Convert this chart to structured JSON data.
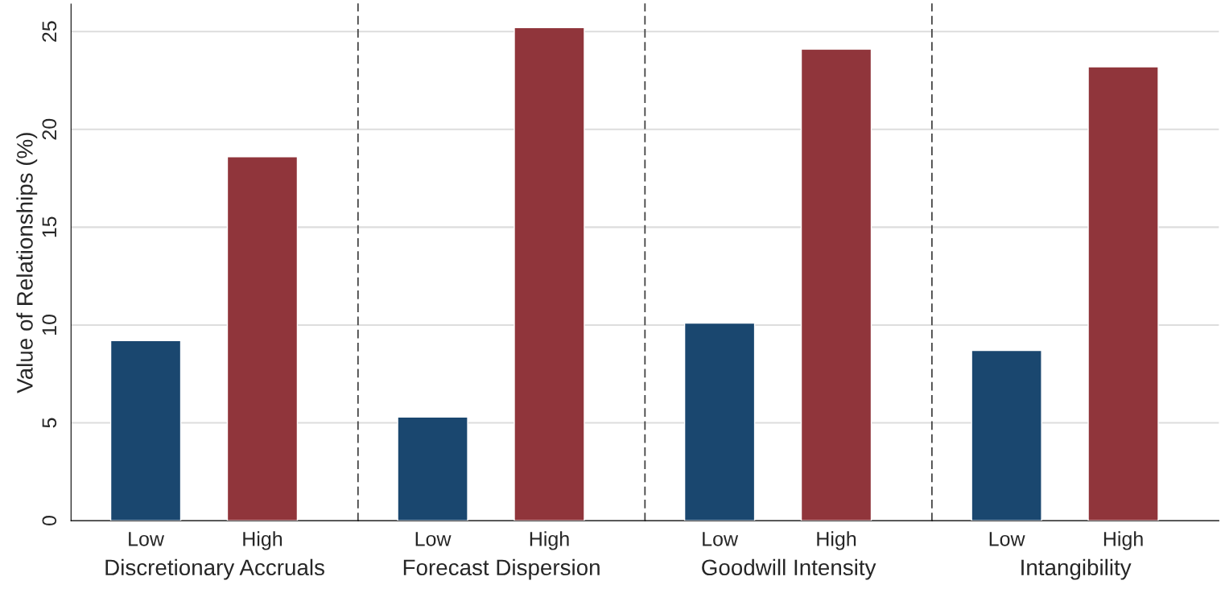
{
  "chart_data": [
    {
      "type": "bar",
      "categories": [
        "Low",
        "High"
      ],
      "values": [
        9.2,
        18.6
      ],
      "colors": [
        "#1a476f",
        "#90353b"
      ],
      "xlabel": "Discretionary Accruals",
      "ylabel": "Value of Relationships (%)",
      "ylim": [
        0,
        26.4
      ],
      "yticks": [
        0,
        5,
        10,
        15,
        20,
        25
      ],
      "grid": "y"
    },
    {
      "type": "bar",
      "categories": [
        "Low",
        "High"
      ],
      "values": [
        5.3,
        25.2
      ],
      "colors": [
        "#1a476f",
        "#90353b"
      ],
      "xlabel": "Forecast Dispersion",
      "ylim": [
        0,
        26.4
      ],
      "yticks": [
        0,
        5,
        10,
        15,
        20,
        25
      ],
      "grid": "y",
      "tick_labels": "x"
    },
    {
      "type": "bar",
      "categories": [
        "Low",
        "High"
      ],
      "values": [
        10.1,
        24.1
      ],
      "colors": [
        "#1a476f",
        "#90353b"
      ],
      "xlabel": "Goodwill Intensity",
      "ylim": [
        0,
        26.4
      ],
      "yticks": [
        0,
        5,
        10,
        15,
        20,
        25
      ],
      "grid": "y",
      "tick_labels": "x"
    },
    {
      "type": "bar",
      "categories": [
        "Low",
        "High"
      ],
      "values": [
        8.7,
        23.2
      ],
      "colors": [
        "#1a476f",
        "#90353b"
      ],
      "xlabel": "Intangibility",
      "ylim": [
        0,
        26.4
      ],
      "yticks": [
        0,
        5,
        10,
        15,
        20,
        25
      ],
      "grid": "y",
      "tick_labels": "x"
    }
  ]
}
